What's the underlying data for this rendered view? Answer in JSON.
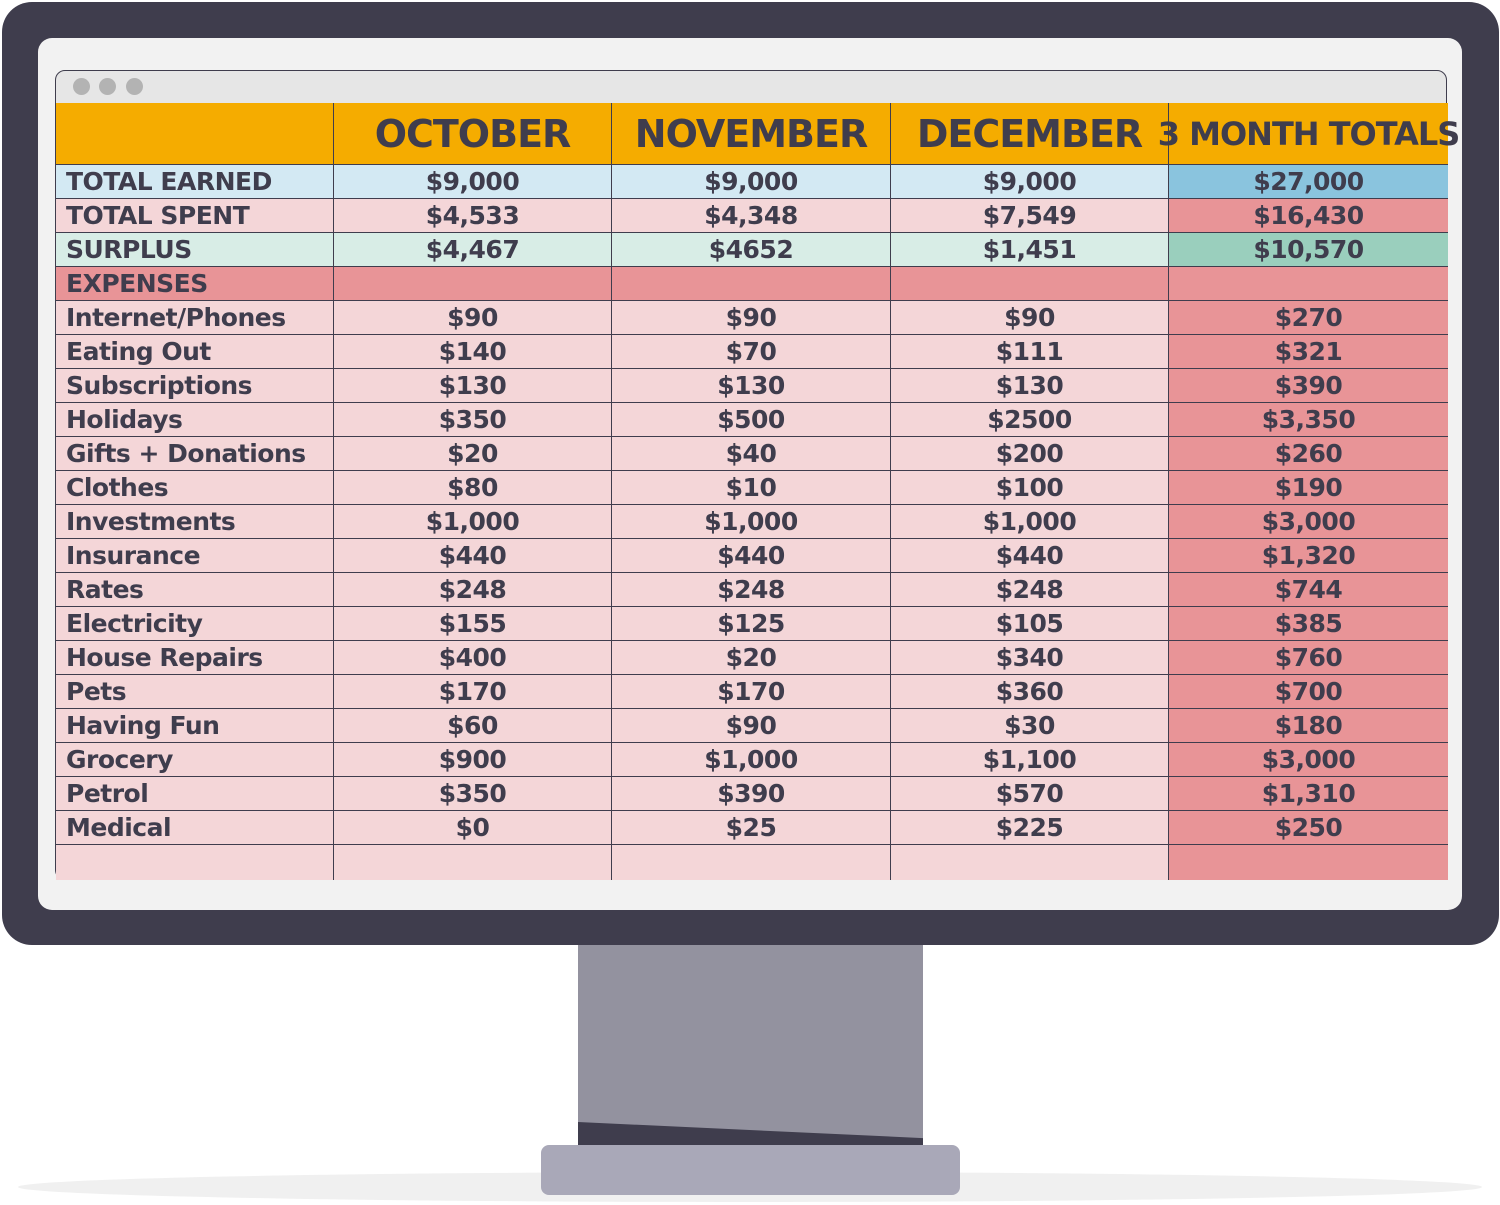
{
  "table": {
    "columns": [
      "OCTOBER",
      "NOVEMBER",
      "DECEMBER",
      "3 MONTH TOTALS"
    ],
    "summary_rows": [
      {
        "label": "TOTAL EARNED",
        "values": [
          "$9,000",
          "$9,000",
          "$9,000",
          "$27,000"
        ]
      },
      {
        "label": "TOTAL SPENT",
        "values": [
          "$4,533",
          "$4,348",
          "$7,549",
          "$16,430"
        ]
      },
      {
        "label": "SURPLUS",
        "values": [
          "$4,467",
          "$4652",
          "$1,451",
          "$10,570"
        ]
      }
    ],
    "section_label": "EXPENSES",
    "expense_rows": [
      {
        "label": "Internet/Phones",
        "values": [
          "$90",
          "$90",
          "$90",
          "$270"
        ]
      },
      {
        "label": "Eating Out",
        "values": [
          "$140",
          "$70",
          "$111",
          "$321"
        ]
      },
      {
        "label": "Subscriptions",
        "values": [
          "$130",
          "$130",
          "$130",
          "$390"
        ]
      },
      {
        "label": "Holidays",
        "values": [
          "$350",
          "$500",
          "$2500",
          "$3,350"
        ]
      },
      {
        "label": "Gifts + Donations",
        "values": [
          "$20",
          "$40",
          "$200",
          "$260"
        ]
      },
      {
        "label": "Clothes",
        "values": [
          "$80",
          "$10",
          "$100",
          "$190"
        ]
      },
      {
        "label": "Investments",
        "values": [
          "$1,000",
          "$1,000",
          "$1,000",
          "$3,000"
        ]
      },
      {
        "label": "Insurance",
        "values": [
          "$440",
          "$440",
          "$440",
          "$1,320"
        ]
      },
      {
        "label": "Rates",
        "values": [
          "$248",
          "$248",
          "$248",
          "$744"
        ]
      },
      {
        "label": "Electricity",
        "values": [
          "$155",
          "$125",
          "$105",
          "$385"
        ]
      },
      {
        "label": "House Repairs",
        "values": [
          "$400",
          "$20",
          "$340",
          "$760"
        ]
      },
      {
        "label": "Pets",
        "values": [
          "$170",
          "$170",
          "$360",
          "$700"
        ]
      },
      {
        "label": "Having Fun",
        "values": [
          "$60",
          "$90",
          "$30",
          "$180"
        ]
      },
      {
        "label": "Grocery",
        "values": [
          "$900",
          "$1,000",
          "$1,100",
          "$3,000"
        ]
      },
      {
        "label": "Petrol",
        "values": [
          "$350",
          "$390",
          "$570",
          "$1,310"
        ]
      },
      {
        "label": "Medical",
        "values": [
          "$0",
          "$25",
          "$225",
          "$250"
        ]
      }
    ]
  }
}
